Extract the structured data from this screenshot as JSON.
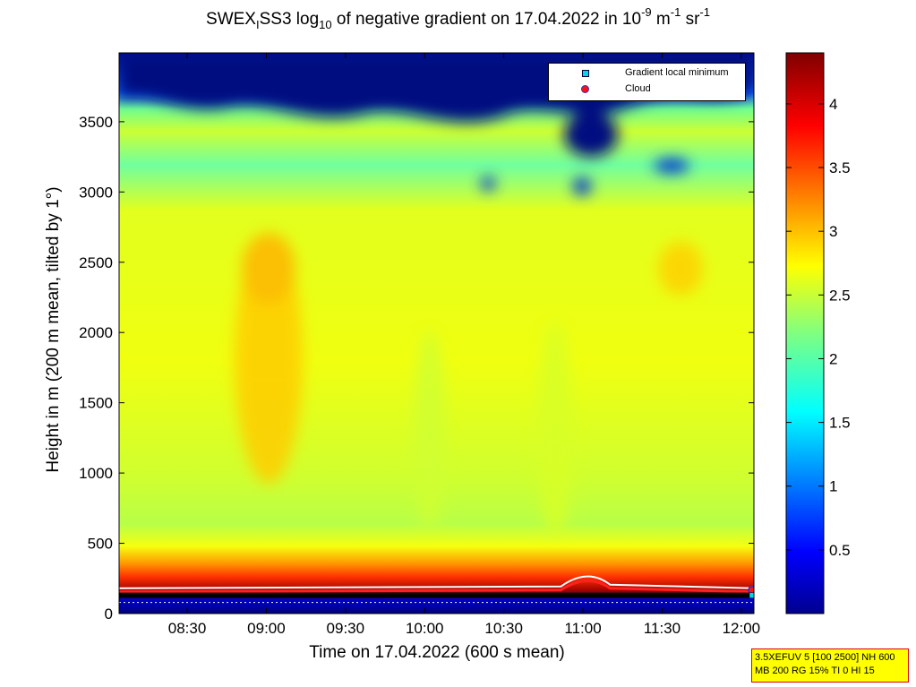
{
  "title": {
    "part1": "SWEX",
    "sub1": "I",
    "part2": "SS3 log",
    "sub2": "10",
    "part3": " of negative gradient on 17.04.2022 in 10",
    "sup1": "-9",
    "part4": " m",
    "sup2": "-1",
    "part5": " sr",
    "sup3": "-1"
  },
  "info_box": {
    "line1": "3.5XEFUV 5 [100 2500] NH 600",
    "line2": "MB 200 RG 15% TI 0 HI 15"
  },
  "chart_data": {
    "type": "heatmap",
    "xlabel": "Time on 17.04.2022 (600 s mean)",
    "ylabel": "Height in m (200 m mean, tilted by 1°)",
    "x_tick_labels": [
      "08:30",
      "09:00",
      "09:30",
      "10:00",
      "10:30",
      "11:00",
      "11:30",
      "12:00"
    ],
    "x_tick_hours": [
      8.5,
      9.0,
      9.5,
      10.0,
      10.5,
      11.0,
      11.5,
      12.0
    ],
    "xlim_hours": [
      8.07,
      12.08
    ],
    "y_ticks": [
      0,
      500,
      1000,
      1500,
      2000,
      2500,
      3000,
      3500
    ],
    "ylim": [
      0,
      3990
    ],
    "colorbar": {
      "ticks": [
        0.5,
        1,
        1.5,
        2,
        2.5,
        3,
        3.5,
        4
      ],
      "tick_labels": [
        "0.5",
        "1",
        "1.5",
        "2",
        "2.5",
        "3",
        "3.5",
        "4"
      ],
      "range": [
        0,
        4.4
      ],
      "colormap": "jet"
    },
    "legend": [
      {
        "label": "Gradient local minimum",
        "marker": "square",
        "color": "#00d8e8"
      },
      {
        "label": "Cloud",
        "marker": "circle",
        "color": "#ff1010"
      }
    ],
    "legend_position": "top-right",
    "field_description_values": {
      "near_surface_band_m": [
        0,
        330
      ],
      "surface_gradient_peak": 4.3,
      "boundary_layer_value": 2.5,
      "plume_near_0900_value": 2.9,
      "upper_low_value_region_start_m": 3400
    },
    "gradient_local_minimum_height_m": 130,
    "cloud_layer_height_m": 180,
    "cloud_peak": {
      "time_hours": 11.03,
      "height_m": 330
    }
  }
}
